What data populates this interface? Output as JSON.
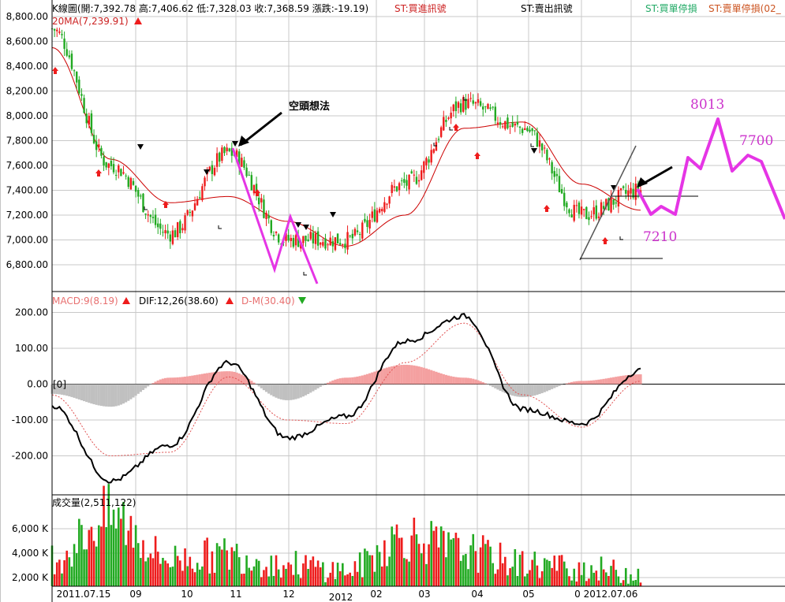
{
  "price_panel": {
    "header": {
      "ohlc": "K線圖(開:7,392.78 高:7,406.62 低:7,328.03 收:7,368.59 漲跌:-19.19)",
      "buy_signal": "ST:買進訊號",
      "sell_signal": "ST:賣出訊號",
      "buy_stop": "ST:買單停損",
      "sell_stop": "ST:賣單停損(02_"
    },
    "ma_label": "20MA(7,239.91)",
    "annotation": "空頭想法",
    "forecast_labels": [
      "8013",
      "7700",
      "7210"
    ]
  },
  "macd_panel": {
    "macd_label": "MACD:9(8.19)",
    "dif_label": "DIF:12,26(38.60)",
    "dm_label": "D-M(30.40)",
    "zero_marker": "[0]"
  },
  "volume_panel": {
    "label": "成交量(2,511,122)"
  },
  "x_axis": {
    "labels": [
      "2011.07.15",
      "09",
      "10",
      "11",
      "12",
      "2012",
      "02",
      "03",
      "04",
      "05",
      "0",
      "2012.07.06"
    ]
  },
  "colors": {
    "up": "#ee1c1c",
    "down": "#22aa22",
    "ma": "#cc0000",
    "forecast": "#e535e5",
    "macd_pos": "#f4a0a0",
    "macd_neg": "#c0c0c0",
    "grid": "#c8c8c8"
  },
  "chart_data": [
    {
      "type": "line",
      "title": "K線圖",
      "ylim": [
        6600,
        8900
      ],
      "yticks": [
        "8,800.00",
        "8,600.00",
        "8,400.00",
        "8,200.00",
        "8,000.00",
        "7,800.00",
        "7,600.00",
        "7,400.00",
        "7,200.00",
        "7,000.00",
        "6,800.00"
      ],
      "series": [
        {
          "name": "K線",
          "x": [
            "2011.07.15",
            "09",
            "10",
            "11",
            "12",
            "2012",
            "02",
            "03",
            "04",
            "05",
            "2012.07.06"
          ],
          "values": [
            8700,
            7600,
            7050,
            7700,
            7000,
            7000,
            7450,
            8100,
            7900,
            7200,
            7400
          ]
        },
        {
          "name": "20MA",
          "x": [
            "2011.07.15",
            "09",
            "10",
            "11",
            "12",
            "2012",
            "02",
            "03",
            "04",
            "05",
            "2012.07.06"
          ],
          "values": [
            8550,
            7650,
            7300,
            7350,
            7150,
            6950,
            7200,
            7900,
            7950,
            7450,
            7240
          ]
        }
      ]
    },
    {
      "type": "line",
      "title": "MACD",
      "ylim": [
        -300,
        230
      ],
      "yticks": [
        "200.00",
        "100.00",
        "0.00",
        "-100.00",
        "-200.00"
      ],
      "series": [
        {
          "name": "DIF",
          "x": [
            "2011.07.15",
            "09",
            "10",
            "11",
            "12",
            "2012",
            "02",
            "03",
            "04",
            "05",
            "2012.07.06"
          ],
          "values": [
            -60,
            -270,
            -170,
            60,
            -150,
            -90,
            120,
            190,
            -70,
            -110,
            38.6
          ]
        },
        {
          "name": "MACD",
          "x": [
            "2011.07.15",
            "09",
            "10",
            "11",
            "12",
            "2012",
            "02",
            "03",
            "04",
            "05",
            "2012.07.06"
          ],
          "values": [
            -30,
            -200,
            -190,
            20,
            -100,
            -110,
            60,
            170,
            -30,
            -120,
            8.19
          ]
        }
      ]
    },
    {
      "type": "bar",
      "title": "成交量",
      "ylim": [
        1500,
        8000
      ],
      "yticks": [
        "6,000 K",
        "4,000 K",
        "2,000 K"
      ],
      "series": [
        {
          "name": "成交量",
          "x": [
            "2011.07.15",
            "09",
            "10",
            "11",
            "12",
            "2012",
            "02",
            "03",
            "04",
            "05",
            "2012.07.06"
          ],
          "values": [
            4000,
            7500,
            3800,
            4200,
            3300,
            2800,
            5800,
            4500,
            3400,
            3000,
            2511
          ]
        }
      ]
    }
  ]
}
